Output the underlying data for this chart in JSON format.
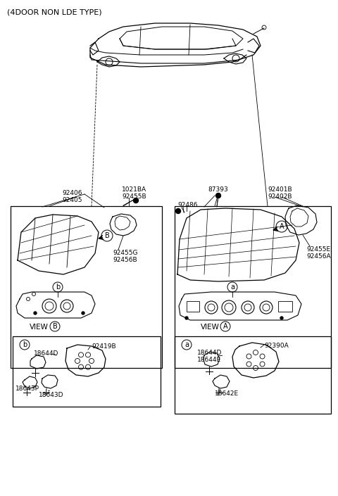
{
  "title": "(4DOOR NON LDE TYPE)",
  "bg_color": "#ffffff",
  "line_color": "#000000",
  "text_color": "#000000",
  "fig_width": 4.8,
  "fig_height": 7.05,
  "dpi": 100,
  "labels": {
    "top_title": "(4DOOR NON LDE TYPE)",
    "left_top_labels": [
      "92406",
      "92405"
    ],
    "left_mid_labels": [
      "1021BA",
      "92455B"
    ],
    "left_part_labels": [
      "92455G",
      "92456B"
    ],
    "left_detail_labels": [
      "92419B",
      "18644D",
      "18643P",
      "18643D"
    ],
    "right_top_labels": [
      "87393"
    ],
    "right_upper_labels": [
      "92401B",
      "92402B"
    ],
    "right_mid_label": "92486",
    "right_part_labels": [
      "92455E",
      "92456A"
    ],
    "right_detail_labels": [
      "92390A",
      "18644D",
      "18644E",
      "18642E"
    ],
    "view_b": "VIEW",
    "view_a": "VIEW",
    "circle_b": "B",
    "circle_a": "A",
    "small_b": "b",
    "small_a": "a"
  }
}
